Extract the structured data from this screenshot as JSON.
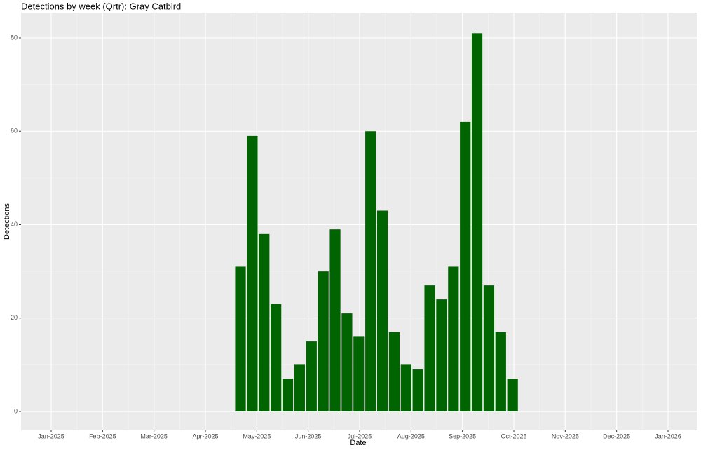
{
  "chart_data": {
    "type": "bar",
    "title": "Detections by week (Qrtr): Gray Catbird",
    "x_label": "Date",
    "y_label": "Detections",
    "xticks": [
      "Jan-2025",
      "Feb-2025",
      "Mar-2025",
      "Apr-2025",
      "May-2025",
      "Jun-2025",
      "Jul-2025",
      "Aug-2025",
      "Sep-2025",
      "Oct-2025",
      "Nov-2025",
      "Dec-2025",
      "Jan-2026"
    ],
    "values": [
      null,
      null,
      null,
      null,
      null,
      null,
      null,
      null,
      null,
      null,
      null,
      null,
      null,
      null,
      null,
      null,
      31,
      59,
      38,
      23,
      7,
      10,
      15,
      30,
      39,
      21,
      16,
      60,
      43,
      17,
      10,
      9,
      27,
      24,
      31,
      62,
      81,
      27,
      17,
      7,
      null,
      null,
      null,
      null,
      null,
      null,
      null,
      null,
      null,
      null,
      null,
      null,
      null
    ],
    "color": "#006400",
    "ylim": [
      -4.05,
      85.4
    ],
    "yticks": [
      0,
      20,
      40,
      60,
      80
    ],
    "grid": true
  }
}
